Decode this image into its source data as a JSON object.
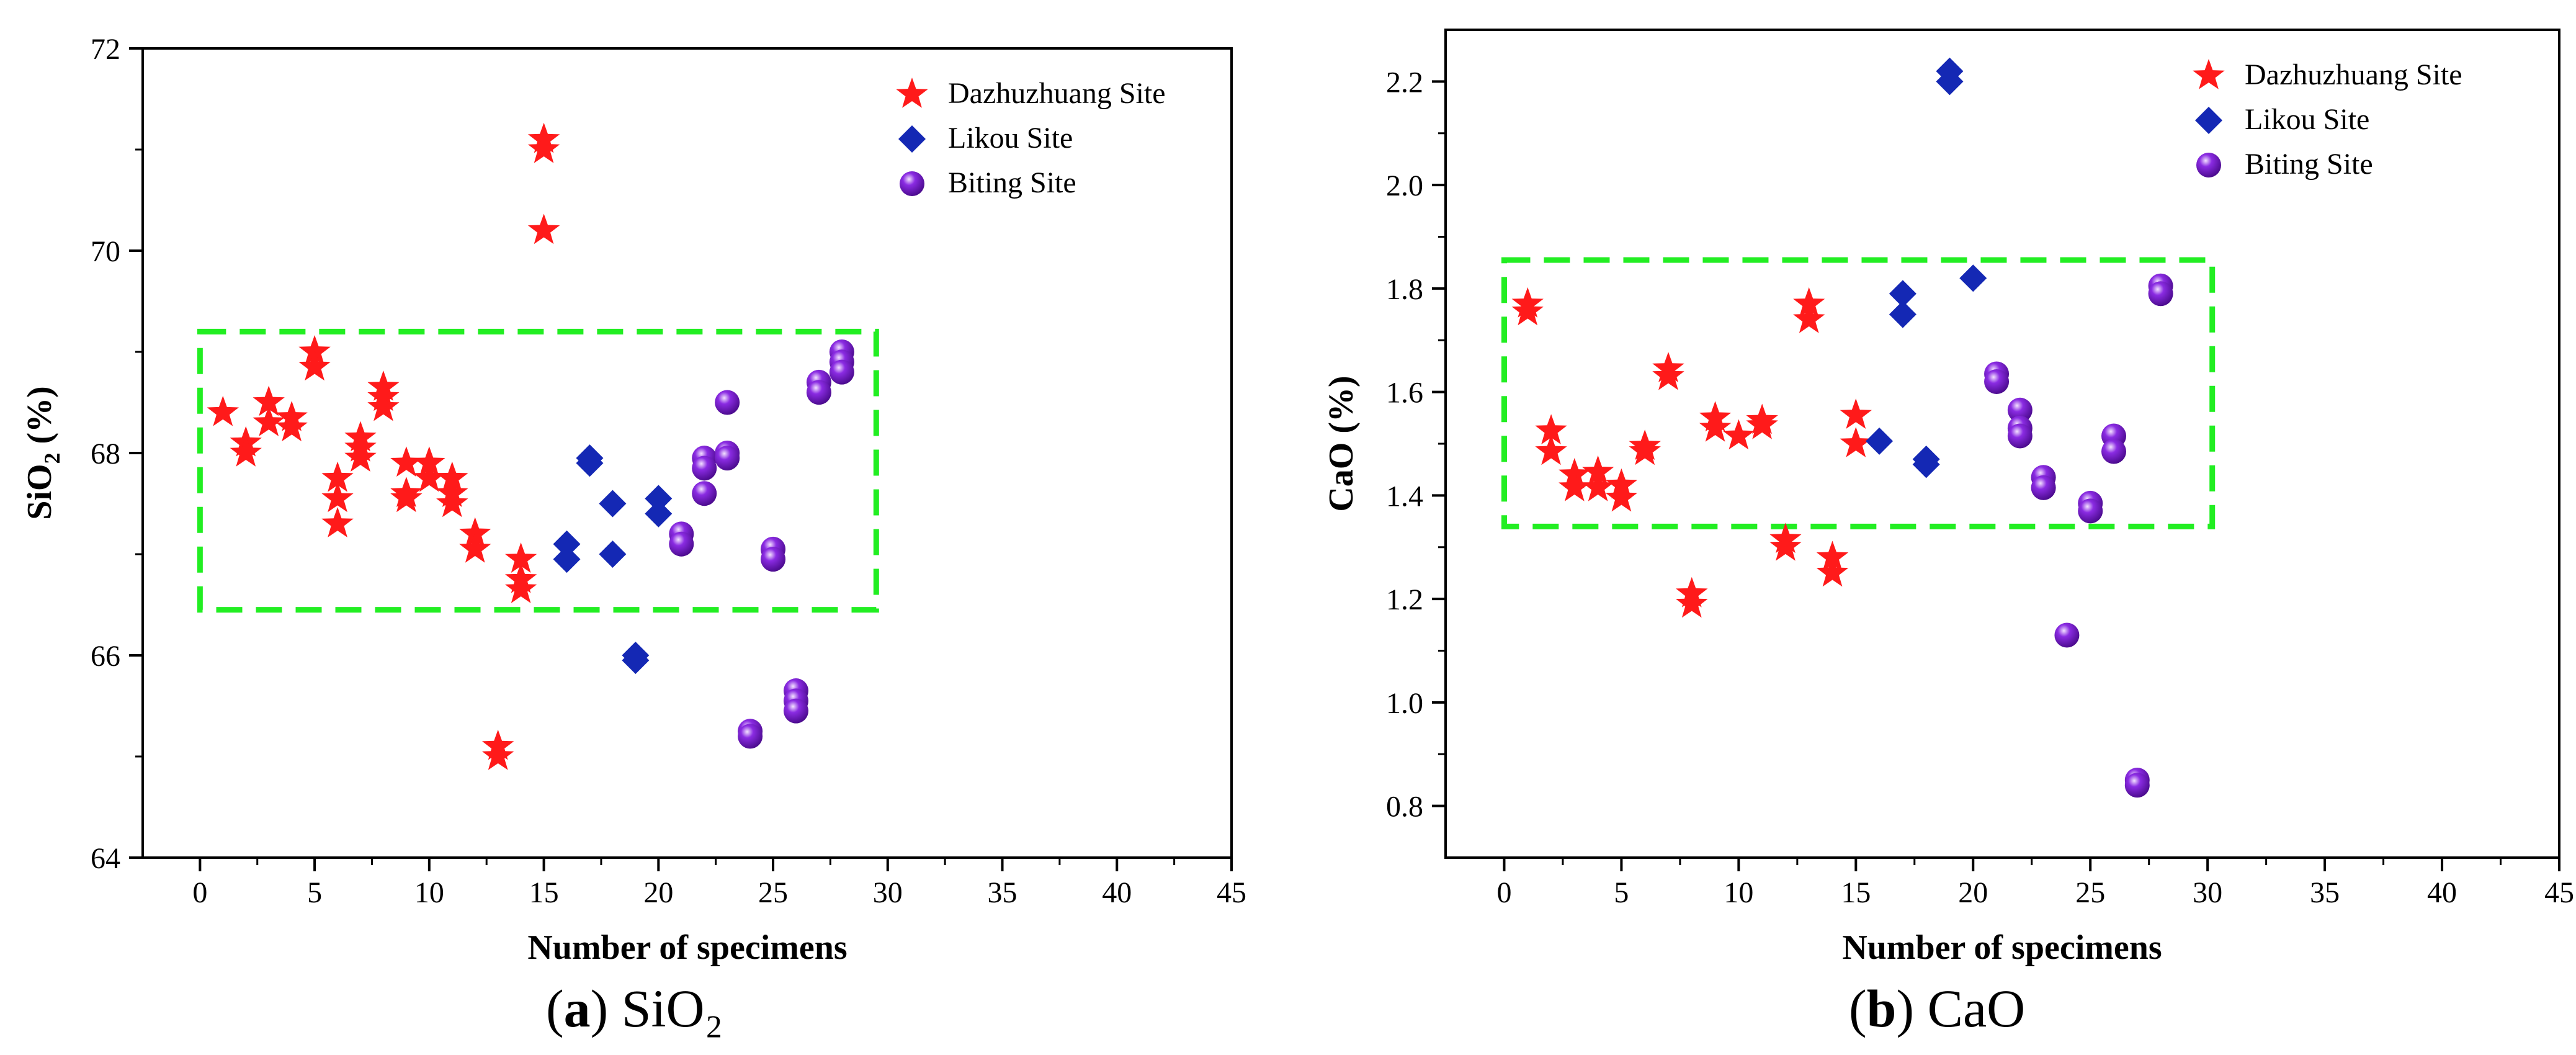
{
  "colors": {
    "dazhuzhuang": "#ff1a1a",
    "likou": "#1428b4",
    "biting": "#8a2be2",
    "region_box": "#22ee22",
    "axis": "#000000"
  },
  "chart_data": [
    {
      "type": "scatter",
      "caption": {
        "label": "a",
        "text": "SiO₂"
      },
      "xlabel": "Number of specimens",
      "ylabel_main": "SiO",
      "ylabel_sub": "2",
      "ylabel_unit": "(%)",
      "xlim": [
        -2.5,
        45
      ],
      "ylim": [
        64,
        72
      ],
      "xticks": [
        0,
        5,
        10,
        15,
        20,
        25,
        30,
        35,
        40,
        45
      ],
      "yticks": [
        64,
        66,
        68,
        70,
        72
      ],
      "legend_position": "top-right",
      "region_box": {
        "x": [
          0,
          29.5
        ],
        "y": [
          66.45,
          69.2
        ]
      },
      "series": [
        {
          "name": "Dazhuzhuang Site",
          "marker": "star",
          "color_key": "dazhuzhuang",
          "points": [
            [
              1,
              68.4
            ],
            [
              2,
              68.1
            ],
            [
              2,
              68.0
            ],
            [
              3,
              68.5
            ],
            [
              3,
              68.3
            ],
            [
              4,
              68.35
            ],
            [
              4,
              68.25
            ],
            [
              5,
              69.0
            ],
            [
              5,
              68.85
            ],
            [
              6,
              67.75
            ],
            [
              6,
              67.55
            ],
            [
              6,
              67.3
            ],
            [
              7,
              68.15
            ],
            [
              7,
              68.05
            ],
            [
              7,
              67.95
            ],
            [
              8,
              68.65
            ],
            [
              8,
              68.55
            ],
            [
              8,
              68.45
            ],
            [
              9,
              67.9
            ],
            [
              9,
              67.6
            ],
            [
              9,
              67.55
            ],
            [
              10,
              67.9
            ],
            [
              10,
              67.75
            ],
            [
              11,
              67.75
            ],
            [
              11,
              67.6
            ],
            [
              11,
              67.5
            ],
            [
              12,
              67.2
            ],
            [
              12,
              67.05
            ],
            [
              13,
              65.1
            ],
            [
              13,
              65.0
            ],
            [
              14,
              66.95
            ],
            [
              14,
              66.75
            ],
            [
              14,
              66.65
            ],
            [
              15,
              71.1
            ],
            [
              15,
              71.0
            ],
            [
              15,
              70.2
            ]
          ]
        },
        {
          "name": "Likou Site",
          "marker": "diamond",
          "color_key": "likou",
          "points": [
            [
              16,
              67.1
            ],
            [
              16,
              66.95
            ],
            [
              17,
              67.95
            ],
            [
              17,
              67.9
            ],
            [
              18,
              67.5
            ],
            [
              18,
              67.0
            ],
            [
              19,
              66.0
            ],
            [
              19,
              65.95
            ],
            [
              20,
              67.55
            ],
            [
              20,
              67.4
            ]
          ]
        },
        {
          "name": "Biting Site",
          "marker": "sphere",
          "color_key": "biting",
          "points": [
            [
              21,
              67.2
            ],
            [
              21,
              67.1
            ],
            [
              22,
              67.95
            ],
            [
              22,
              67.85
            ],
            [
              22,
              67.6
            ],
            [
              23,
              68.5
            ],
            [
              23,
              68.0
            ],
            [
              23,
              67.95
            ],
            [
              24,
              65.25
            ],
            [
              24,
              65.2
            ],
            [
              25,
              67.05
            ],
            [
              25,
              66.95
            ],
            [
              26,
              65.65
            ],
            [
              26,
              65.55
            ],
            [
              26,
              65.45
            ],
            [
              27,
              68.7
            ],
            [
              27,
              68.6
            ],
            [
              28,
              69.0
            ],
            [
              28,
              68.9
            ],
            [
              28,
              68.8
            ]
          ]
        }
      ]
    },
    {
      "type": "scatter",
      "caption": {
        "label": "b",
        "text": "CaO"
      },
      "xlabel": "Number of specimens",
      "ylabel_main": "CaO",
      "ylabel_sub": "",
      "ylabel_unit": "(%)",
      "xlim": [
        -2.5,
        45
      ],
      "ylim": [
        0.7,
        2.3
      ],
      "xticks": [
        0,
        5,
        10,
        15,
        20,
        25,
        30,
        35,
        40,
        45
      ],
      "yticks": [
        0.8,
        1.0,
        1.2,
        1.4,
        1.6,
        1.8,
        2.0,
        2.2
      ],
      "legend_position": "top-right",
      "region_box": {
        "x": [
          0,
          30.2
        ],
        "y": [
          1.34,
          1.855
        ]
      },
      "series": [
        {
          "name": "Dazhuzhuang Site",
          "marker": "star",
          "color_key": "dazhuzhuang",
          "points": [
            [
              1,
              1.77
            ],
            [
              1,
              1.755
            ],
            [
              2,
              1.525
            ],
            [
              2,
              1.485
            ],
            [
              3,
              1.44
            ],
            [
              3,
              1.415
            ],
            [
              4,
              1.445
            ],
            [
              4,
              1.415
            ],
            [
              5,
              1.42
            ],
            [
              5,
              1.395
            ],
            [
              6,
              1.495
            ],
            [
              6,
              1.485
            ],
            [
              7,
              1.645
            ],
            [
              7,
              1.63
            ],
            [
              8,
              1.21
            ],
            [
              8,
              1.19
            ],
            [
              9,
              1.55
            ],
            [
              9,
              1.53
            ],
            [
              10,
              1.515
            ],
            [
              11,
              1.545
            ],
            [
              11,
              1.535
            ],
            [
              12,
              1.315
            ],
            [
              12,
              1.3
            ],
            [
              13,
              1.77
            ],
            [
              13,
              1.74
            ],
            [
              14,
              1.28
            ],
            [
              14,
              1.25
            ],
            [
              15,
              1.555
            ],
            [
              15,
              1.5
            ]
          ]
        },
        {
          "name": "Likou Site",
          "marker": "diamond",
          "color_key": "likou",
          "points": [
            [
              16,
              1.505
            ],
            [
              17,
              1.79
            ],
            [
              17,
              1.75
            ],
            [
              18,
              1.47
            ],
            [
              18,
              1.46
            ],
            [
              19,
              2.22
            ],
            [
              19,
              2.2
            ],
            [
              20,
              1.82
            ]
          ]
        },
        {
          "name": "Biting Site",
          "marker": "sphere",
          "color_key": "biting",
          "points": [
            [
              21,
              1.635
            ],
            [
              21,
              1.62
            ],
            [
              22,
              1.565
            ],
            [
              22,
              1.53
            ],
            [
              22,
              1.515
            ],
            [
              23,
              1.435
            ],
            [
              23,
              1.415
            ],
            [
              24,
              1.13
            ],
            [
              25,
              1.385
            ],
            [
              25,
              1.37
            ],
            [
              26,
              1.515
            ],
            [
              26,
              1.485
            ],
            [
              27,
              0.85
            ],
            [
              27,
              0.84
            ],
            [
              28,
              1.805
            ],
            [
              28,
              1.79
            ]
          ]
        }
      ]
    }
  ]
}
